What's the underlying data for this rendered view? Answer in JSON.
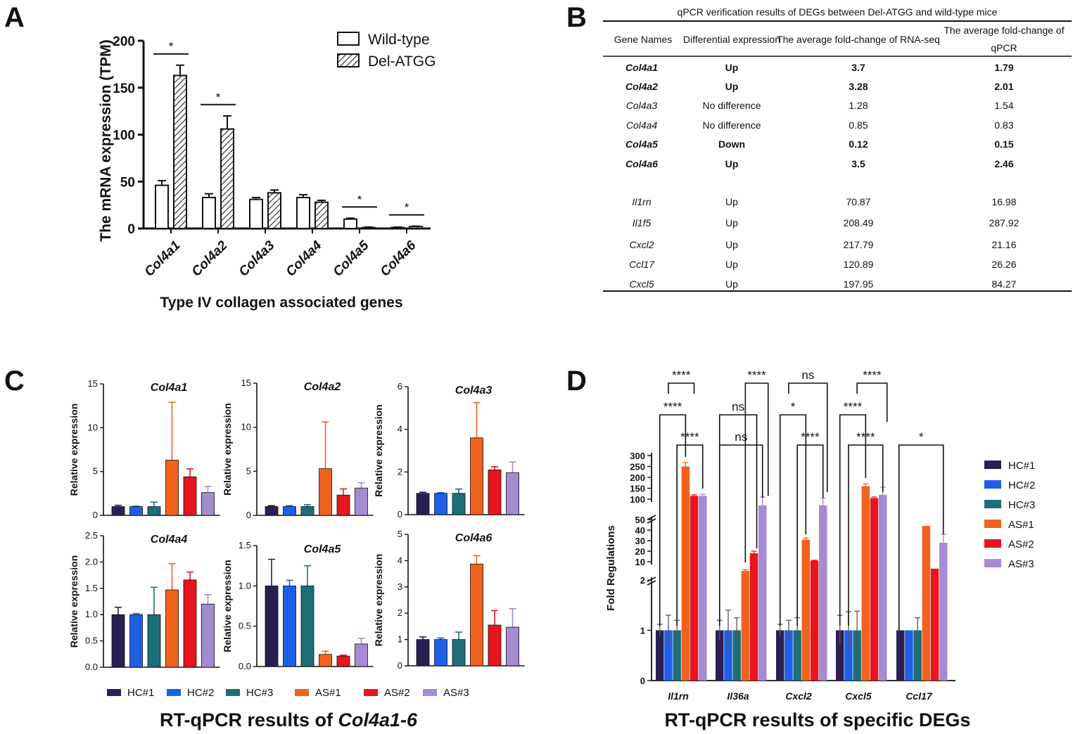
{
  "panels": {
    "a": "A",
    "b": "B",
    "c": "C",
    "d": "D"
  },
  "colors": {
    "hc1": "#2a1f52",
    "hc2": "#1f5fe8",
    "hc3": "#1d6f75",
    "as1": "#f0621f",
    "as2": "#e8141e",
    "as3": "#a58bd2"
  },
  "chart_data": [
    {
      "id": "A",
      "type": "bar",
      "categories": [
        "Col4a1",
        "Col4a2",
        "Col4a3",
        "Col4a4",
        "Col4a5",
        "Col4a6"
      ],
      "series": [
        {
          "name": "Wild-type",
          "values": [
            46,
            33,
            31,
            33,
            10,
            1
          ],
          "errors": [
            5,
            4,
            2,
            3,
            1,
            0.5
          ]
        },
        {
          "name": "Del-ATGG",
          "values": [
            163,
            106,
            38,
            28,
            1,
            2
          ],
          "errors": [
            11,
            14,
            3,
            2,
            0.5,
            0.5
          ]
        }
      ],
      "significance": [
        "*",
        "*",
        "",
        "",
        "*",
        "*"
      ],
      "ylabel": "The mRNA expression  (TPM)",
      "xlabel": "Type IV collagen associated genes",
      "yticks": [
        0,
        50,
        100,
        150,
        200
      ],
      "ylim": [
        0,
        200
      ]
    },
    {
      "id": "C",
      "type": "bar",
      "groups": [
        "HC#1",
        "HC#2",
        "HC#3",
        "AS#1",
        "AS#2",
        "AS#3"
      ],
      "ylabel": "Relative expression",
      "caption_prefix": "RT-qPCR results of ",
      "caption_italic": "Col4a1-6",
      "subplots": [
        {
          "title": "Col4a1",
          "ymax": 15,
          "yticks": [
            "0",
            "5",
            "10",
            "15"
          ],
          "values": [
            1,
            1,
            1,
            6.3,
            4.4,
            2.6
          ],
          "errors": [
            0.15,
            0.05,
            0.5,
            6.6,
            0.9,
            0.7
          ]
        },
        {
          "title": "Col4a2",
          "ymax": 15,
          "yticks": [
            "0",
            "5",
            "10",
            "15"
          ],
          "values": [
            1,
            1,
            1,
            5.3,
            2.3,
            3.1
          ],
          "errors": [
            0.1,
            0.1,
            0.2,
            5.3,
            0.7,
            0.6
          ]
        },
        {
          "title": "Col4a3",
          "ymax": 6,
          "yticks": [
            "0",
            "2",
            "4",
            "6"
          ],
          "values": [
            1,
            1,
            1,
            3.6,
            2.1,
            1.97
          ],
          "errors": [
            0.05,
            0.03,
            0.2,
            1.65,
            0.15,
            0.5
          ]
        },
        {
          "title": "Col4a4",
          "ymax": 2.5,
          "yticks": [
            "0.0",
            "0.5",
            "1.0",
            "1.5",
            "2.0",
            "2.5"
          ],
          "values": [
            1,
            1,
            1,
            1.47,
            1.66,
            1.2
          ],
          "errors": [
            0.14,
            0.02,
            0.52,
            0.5,
            0.15,
            0.18
          ]
        },
        {
          "title": "Col4a5",
          "ymax": 1.5,
          "yticks": [
            "0.0",
            "0.5",
            "1.0",
            "1.5"
          ],
          "values": [
            1,
            1,
            1,
            0.15,
            0.13,
            0.28
          ],
          "errors": [
            0.33,
            0.07,
            0.25,
            0.04,
            0.01,
            0.07
          ]
        },
        {
          "title": "Col4a6",
          "ymax": 5,
          "yticks": [
            "0",
            "1",
            "2",
            "3",
            "4",
            "5"
          ],
          "values": [
            1,
            1,
            1,
            3.87,
            1.55,
            1.47
          ],
          "errors": [
            0.1,
            0.06,
            0.28,
            0.32,
            0.55,
            0.7
          ]
        }
      ]
    },
    {
      "id": "D",
      "type": "bar",
      "title": "RT-qPCR results of specific DEGs",
      "categories": [
        "Il1rn",
        "Il36a",
        "Cxcl2",
        "Cxcl5",
        "Ccl17"
      ],
      "groups": [
        "HC#1",
        "HC#2",
        "HC#3",
        "AS#1",
        "AS#2",
        "AS#3"
      ],
      "ylabel": "Fold Regulations",
      "broken_axis_segments": [
        {
          "range": [
            0,
            2
          ],
          "ticks": [
            "0",
            "1",
            "2"
          ]
        },
        {
          "range": [
            10,
            50
          ],
          "ticks": [
            "10",
            "20",
            "30",
            "40",
            "50"
          ]
        },
        {
          "range": [
            100,
            300
          ],
          "ticks": [
            "100",
            "150",
            "200",
            "250",
            "300"
          ]
        }
      ],
      "values": [
        [
          1,
          1,
          1,
          250,
          115,
          115
        ],
        [
          1,
          1,
          1,
          6,
          18,
          85
        ],
        [
          1,
          1,
          1,
          31,
          11,
          85
        ],
        [
          1,
          1,
          1,
          160,
          105,
          120
        ],
        [
          1,
          1,
          1,
          44,
          7,
          28
        ]
      ],
      "errors": [
        [
          0.12,
          0.3,
          0.2,
          18,
          5,
          8
        ],
        [
          0.2,
          0.4,
          0.25,
          0.5,
          2,
          25
        ],
        [
          0.12,
          0.2,
          0.25,
          1.5,
          0.5,
          20
        ],
        [
          0.3,
          0.37,
          0.38,
          10,
          5,
          35
        ],
        [
          0,
          0,
          0.25,
          0,
          0,
          8
        ]
      ],
      "significance": [
        [
          "****",
          "****",
          "****"
        ],
        [
          "****",
          "ns",
          "ns"
        ],
        [
          "ns",
          "*",
          "****"
        ],
        [
          "****",
          "****",
          "****"
        ],
        [
          "*"
        ]
      ]
    }
  ],
  "table": {
    "title": "qPCR verification results of DEGs between Del-ATGG and wild-type mice",
    "headers": [
      "Gene Names",
      "Differential expression",
      "The average fold-change of RNA-seq",
      "The average fold-change of",
      "qPCR"
    ],
    "rows": [
      {
        "gene": "Col4a1",
        "diff": "Up",
        "rnaseq": "3.7",
        "qpcr": "1.79",
        "bold": true
      },
      {
        "gene": "Col4a2",
        "diff": "Up",
        "rnaseq": "3.28",
        "qpcr": "2.01",
        "bold": true
      },
      {
        "gene": "Col4a3",
        "diff": "No difference",
        "rnaseq": "1.28",
        "qpcr": "1.54",
        "bold": false
      },
      {
        "gene": "Col4a4",
        "diff": "No difference",
        "rnaseq": "0.85",
        "qpcr": "0.83",
        "bold": false
      },
      {
        "gene": "Col4a5",
        "diff": "Down",
        "rnaseq": "0.12",
        "qpcr": "0.15",
        "bold": true
      },
      {
        "gene": "Col4a6",
        "diff": "Up",
        "rnaseq": "3.5",
        "qpcr": "2.46",
        "bold": true
      },
      {
        "gene": "Il1rn",
        "diff": "Up",
        "rnaseq": "70.87",
        "qpcr": "16.98",
        "bold": false
      },
      {
        "gene": "Il1f5",
        "diff": "Up",
        "rnaseq": "208.49",
        "qpcr": "287.92",
        "bold": false
      },
      {
        "gene": "Cxcl2",
        "diff": "Up",
        "rnaseq": "217.79",
        "qpcr": "21.16",
        "bold": false
      },
      {
        "gene": "Ccl17",
        "diff": "Up",
        "rnaseq": "120.89",
        "qpcr": "26.26",
        "bold": false
      },
      {
        "gene": "Cxcl5",
        "diff": "Up",
        "rnaseq": "197.95",
        "qpcr": "84.27",
        "bold": false
      }
    ]
  }
}
